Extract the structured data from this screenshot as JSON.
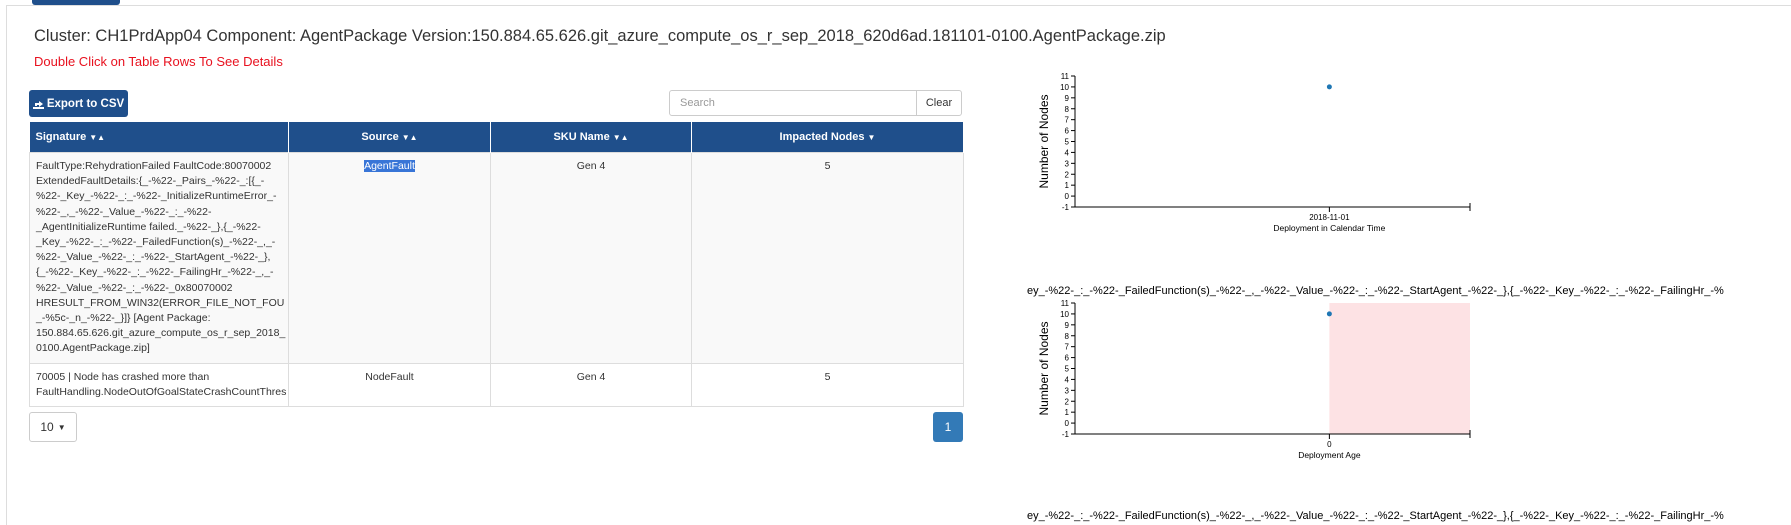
{
  "header": {
    "title": "Cluster: CH1PrdApp04 Component: AgentPackage Version:150.884.65.626.git_azure_compute_os_r_sep_2018_620d6ad.181101-0100.AgentPackage.zip",
    "subtitle": "Double Click on Table Rows To See Details"
  },
  "toolbar": {
    "export_label": "Export to CSV",
    "search_placeholder": "Search",
    "clear_label": "Clear"
  },
  "table": {
    "columns": [
      "Signature",
      "Source",
      "SKU Name",
      "Impacted Nodes"
    ],
    "rows": [
      {
        "signature_lines": [
          "FaultType:RehydrationFailed FaultCode:80070002",
          "ExtendedFaultDetails:{_-%22-_Pairs_-%22-_:[{_-",
          "%22-_Key_-%22-_:_-%22-_InitializeRuntimeError_-",
          "%22-_,_-%22-_Value_-%22-_:_-%22-",
          "_AgentInitializeRuntime failed._-%22-_},{_-%22-",
          "_Key_-%22-_:_-%22-_FailedFunction(s)_-%22-_,_-",
          "%22-_Value_-%22-_:_-%22-_StartAgent_-%22-_},",
          "{_-%22-_Key_-%22-_:_-%22-_FailingHr_-%22-_,_-",
          "%22-_Value_-%22-_:_-%22-_0x80070002",
          "HRESULT_FROM_WIN32(ERROR_FILE_NOT_FOU",
          "_-%5c-_n_-%22-_}]} [Agent Package:",
          "150.884.65.626.git_azure_compute_os_r_sep_2018_",
          "0100.AgentPackage.zip]"
        ],
        "source": "AgentFault",
        "sku": "Gen 4",
        "impacted": "5"
      },
      {
        "signature_lines": [
          "70005 | Node has crashed more than",
          "FaultHandling.NodeOutOfGoalStateCrashCountThres"
        ],
        "source": "NodeFault",
        "sku": "Gen 4",
        "impacted": "5"
      }
    ]
  },
  "pagination": {
    "page_size": "10",
    "current_page": "1"
  },
  "charts": {
    "truncated_caption_1": "ey_-%22-_:_-%22-_FailedFunction(s)_-%22-_,_-%22-_Value_-%22-_:_-%22-_StartAgent_-%22-_},{_-%22-_Key_-%22-_:_-%22-_FailingHr_-%",
    "truncated_caption_2": "ey_-%22-_:_-%22-_FailedFunction(s)_-%22-_,_-%22-_Value_-%22-_:_-%22-_StartAgent_-%22-_},{_-%22-_Key_-%22-_:_-%22-_FailingHr_-%"
  },
  "chart_data": [
    {
      "type": "scatter",
      "ylabel": "Number of Nodes",
      "xlabel": "Deployment in Calendar Time",
      "x_ticks": [
        "2018-11-01"
      ],
      "ylim": [
        -1,
        11
      ],
      "y_ticks": [
        "-1",
        "0",
        "1",
        "2",
        "3",
        "4",
        "5",
        "6",
        "7",
        "8",
        "9",
        "10",
        "11"
      ],
      "points": [
        {
          "x": "2018-11-01",
          "y": 10
        }
      ],
      "point_color": "#1f77b4"
    },
    {
      "type": "scatter",
      "ylabel": "Number of Nodes",
      "xlabel": "Deployment Age",
      "x_ticks": [
        "0"
      ],
      "ylim": [
        -1,
        11
      ],
      "y_ticks": [
        "-1",
        "0",
        "1",
        "2",
        "3",
        "4",
        "5",
        "6",
        "7",
        "8",
        "9",
        "10",
        "11"
      ],
      "points": [
        {
          "x": 0,
          "y": 10
        }
      ],
      "point_color": "#1f77b4",
      "shaded_region_color": "#fde2e4"
    }
  ]
}
